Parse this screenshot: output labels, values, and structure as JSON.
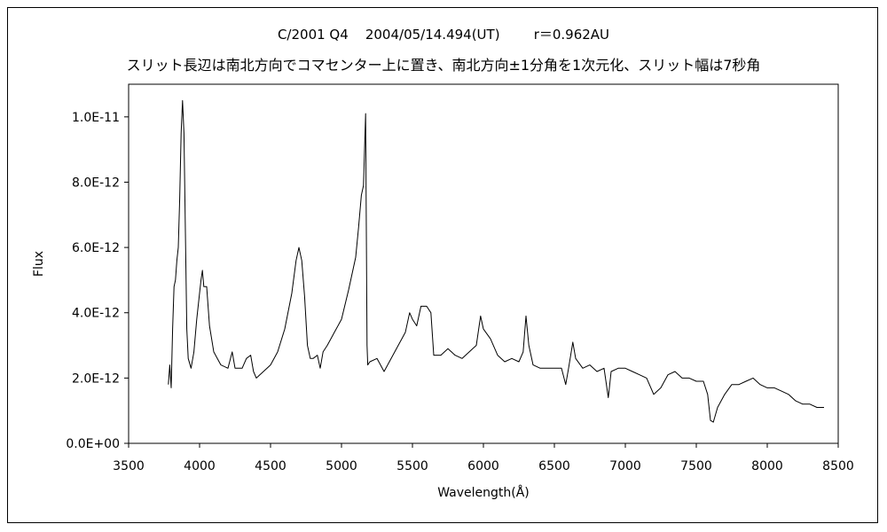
{
  "chart_data": {
    "type": "line",
    "title": "C/2001 Q4    2004/05/14.494(UT)        r＝0.962AU",
    "subtitle": "スリット長辺は南北方向でコマセンター上に置き、南北方向±1分角を1次元化、スリット幅は7秒角",
    "xlabel": "Wavelength(Å)",
    "ylabel": "Flux",
    "xlim": [
      3500,
      8500
    ],
    "ylim": [
      0,
      1.1e-11
    ],
    "x_ticks": [
      "3500",
      "4000",
      "4500",
      "5000",
      "5500",
      "6000",
      "6500",
      "7000",
      "7500",
      "8000",
      "8500"
    ],
    "y_ticks": [
      "0.0E+00",
      "2.0E-12",
      "4.0E-12",
      "6.0E-12",
      "8.0E-12",
      "1.0E-11"
    ],
    "grid": false,
    "legend": "none",
    "series": [
      {
        "color": "#000000",
        "points": [
          [
            3780,
            1.8e-12
          ],
          [
            3790,
            2.4e-12
          ],
          [
            3800,
            1.7e-12
          ],
          [
            3810,
            3.5e-12
          ],
          [
            3820,
            4.8e-12
          ],
          [
            3830,
            5e-12
          ],
          [
            3840,
            5.6e-12
          ],
          [
            3850,
            6e-12
          ],
          [
            3860,
            7.5e-12
          ],
          [
            3870,
            9.5e-12
          ],
          [
            3880,
            1.05e-11
          ],
          [
            3890,
            9.5e-12
          ],
          [
            3900,
            6.5e-12
          ],
          [
            3910,
            3.5e-12
          ],
          [
            3920,
            2.6e-12
          ],
          [
            3940,
            2.3e-12
          ],
          [
            3960,
            2.8e-12
          ],
          [
            3980,
            3.8e-12
          ],
          [
            4000,
            4.6e-12
          ],
          [
            4010,
            5e-12
          ],
          [
            4020,
            5.3e-12
          ],
          [
            4030,
            4.8e-12
          ],
          [
            4050,
            4.8e-12
          ],
          [
            4070,
            3.6e-12
          ],
          [
            4100,
            2.8e-12
          ],
          [
            4150,
            2.4e-12
          ],
          [
            4200,
            2.3e-12
          ],
          [
            4230,
            2.8e-12
          ],
          [
            4250,
            2.3e-12
          ],
          [
            4300,
            2.3e-12
          ],
          [
            4330,
            2.6e-12
          ],
          [
            4360,
            2.7e-12
          ],
          [
            4380,
            2.2e-12
          ],
          [
            4400,
            2e-12
          ],
          [
            4450,
            2.2e-12
          ],
          [
            4500,
            2.4e-12
          ],
          [
            4550,
            2.8e-12
          ],
          [
            4600,
            3.5e-12
          ],
          [
            4650,
            4.6e-12
          ],
          [
            4680,
            5.6e-12
          ],
          [
            4700,
            6e-12
          ],
          [
            4720,
            5.6e-12
          ],
          [
            4740,
            4.5e-12
          ],
          [
            4760,
            3e-12
          ],
          [
            4780,
            2.6e-12
          ],
          [
            4800,
            2.6e-12
          ],
          [
            4830,
            2.7e-12
          ],
          [
            4850,
            2.3e-12
          ],
          [
            4870,
            2.8e-12
          ],
          [
            4900,
            3e-12
          ],
          [
            4950,
            3.4e-12
          ],
          [
            5000,
            3.8e-12
          ],
          [
            5050,
            4.7e-12
          ],
          [
            5100,
            5.7e-12
          ],
          [
            5120,
            6.6e-12
          ],
          [
            5140,
            7.6e-12
          ],
          [
            5155,
            7.9e-12
          ],
          [
            5170,
            1.01e-11
          ],
          [
            5180,
            3e-12
          ],
          [
            5185,
            2.4e-12
          ],
          [
            5200,
            2.5e-12
          ],
          [
            5250,
            2.6e-12
          ],
          [
            5300,
            2.2e-12
          ],
          [
            5350,
            2.6e-12
          ],
          [
            5400,
            3e-12
          ],
          [
            5450,
            3.4e-12
          ],
          [
            5480,
            4e-12
          ],
          [
            5500,
            3.8e-12
          ],
          [
            5530,
            3.6e-12
          ],
          [
            5560,
            4.2e-12
          ],
          [
            5600,
            4.2e-12
          ],
          [
            5630,
            4e-12
          ],
          [
            5650,
            2.7e-12
          ],
          [
            5700,
            2.7e-12
          ],
          [
            5750,
            2.9e-12
          ],
          [
            5800,
            2.7e-12
          ],
          [
            5850,
            2.6e-12
          ],
          [
            5900,
            2.8e-12
          ],
          [
            5950,
            3e-12
          ],
          [
            5980,
            3.9e-12
          ],
          [
            6000,
            3.5e-12
          ],
          [
            6050,
            3.2e-12
          ],
          [
            6100,
            2.7e-12
          ],
          [
            6150,
            2.5e-12
          ],
          [
            6200,
            2.6e-12
          ],
          [
            6250,
            2.5e-12
          ],
          [
            6280,
            2.8e-12
          ],
          [
            6300,
            3.9e-12
          ],
          [
            6320,
            3e-12
          ],
          [
            6350,
            2.4e-12
          ],
          [
            6400,
            2.3e-12
          ],
          [
            6500,
            2.3e-12
          ],
          [
            6550,
            2.3e-12
          ],
          [
            6580,
            1.8e-12
          ],
          [
            6600,
            2.3e-12
          ],
          [
            6630,
            3.1e-12
          ],
          [
            6650,
            2.6e-12
          ],
          [
            6700,
            2.3e-12
          ],
          [
            6750,
            2.4e-12
          ],
          [
            6800,
            2.2e-12
          ],
          [
            6850,
            2.3e-12
          ],
          [
            6880,
            1.4e-12
          ],
          [
            6900,
            2.2e-12
          ],
          [
            6950,
            2.3e-12
          ],
          [
            7000,
            2.3e-12
          ],
          [
            7050,
            2.2e-12
          ],
          [
            7100,
            2.1e-12
          ],
          [
            7150,
            2e-12
          ],
          [
            7200,
            1.5e-12
          ],
          [
            7250,
            1.7e-12
          ],
          [
            7300,
            2.1e-12
          ],
          [
            7350,
            2.2e-12
          ],
          [
            7400,
            2e-12
          ],
          [
            7450,
            2e-12
          ],
          [
            7500,
            1.9e-12
          ],
          [
            7550,
            1.9e-12
          ],
          [
            7580,
            1.5e-12
          ],
          [
            7600,
            7e-13
          ],
          [
            7620,
            6.5e-13
          ],
          [
            7650,
            1.1e-12
          ],
          [
            7700,
            1.5e-12
          ],
          [
            7750,
            1.8e-12
          ],
          [
            7800,
            1.8e-12
          ],
          [
            7850,
            1.9e-12
          ],
          [
            7900,
            2e-12
          ],
          [
            7950,
            1.8e-12
          ],
          [
            8000,
            1.7e-12
          ],
          [
            8050,
            1.7e-12
          ],
          [
            8100,
            1.6e-12
          ],
          [
            8150,
            1.5e-12
          ],
          [
            8200,
            1.3e-12
          ],
          [
            8250,
            1.2e-12
          ],
          [
            8300,
            1.2e-12
          ],
          [
            8350,
            1.1e-12
          ],
          [
            8400,
            1.1e-12
          ]
        ]
      }
    ]
  }
}
